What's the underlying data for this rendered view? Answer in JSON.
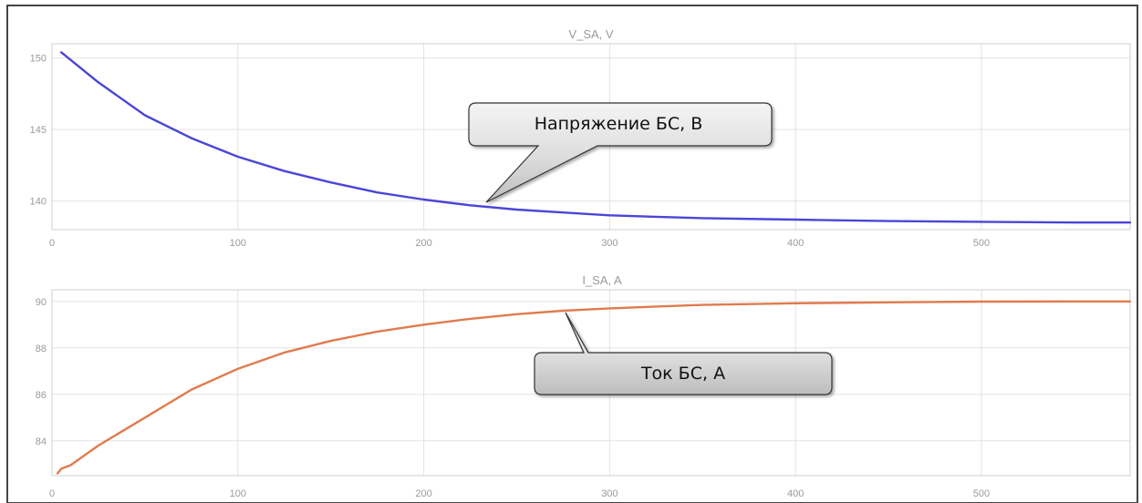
{
  "chart_data": [
    {
      "type": "line",
      "title": "V_SA, V",
      "xlabel": "",
      "ylabel": "",
      "xlim": [
        0,
        580
      ],
      "ylim": [
        138,
        151
      ],
      "xticks": [
        0,
        100,
        200,
        300,
        400,
        500
      ],
      "yticks": [
        140,
        145,
        150
      ],
      "grid": true,
      "series": [
        {
          "color": "#4b45d8",
          "x": [
            5,
            25,
            50,
            75,
            100,
            125,
            150,
            175,
            200,
            225,
            250,
            275,
            300,
            325,
            350,
            400,
            450,
            500,
            550,
            580
          ],
          "y": [
            150.4,
            148.3,
            146.0,
            144.4,
            143.1,
            142.1,
            141.3,
            140.6,
            140.1,
            139.7,
            139.4,
            139.2,
            139.0,
            138.9,
            138.8,
            138.7,
            138.6,
            138.55,
            138.5,
            138.5
          ]
        }
      ],
      "annotation": "Напряжение БС, В"
    },
    {
      "type": "line",
      "title": "I_SA, A",
      "xlabel": "",
      "ylabel": "",
      "xlim": [
        0,
        580
      ],
      "ylim": [
        82.5,
        90.5
      ],
      "xticks": [
        0,
        100,
        200,
        300,
        400,
        500
      ],
      "yticks": [
        84,
        86,
        88,
        90
      ],
      "grid": true,
      "series": [
        {
          "color": "#e07b4e",
          "x": [
            3,
            5,
            10,
            25,
            50,
            75,
            100,
            125,
            150,
            175,
            200,
            225,
            250,
            275,
            300,
            325,
            350,
            400,
            450,
            500,
            550,
            580
          ],
          "y": [
            82.6,
            82.8,
            82.95,
            83.8,
            85.0,
            86.2,
            87.1,
            87.8,
            88.3,
            88.7,
            89.0,
            89.25,
            89.45,
            89.6,
            89.7,
            89.78,
            89.85,
            89.92,
            89.96,
            89.99,
            90.0,
            90.0
          ]
        }
      ],
      "annotation": "Ток БС, А"
    }
  ]
}
